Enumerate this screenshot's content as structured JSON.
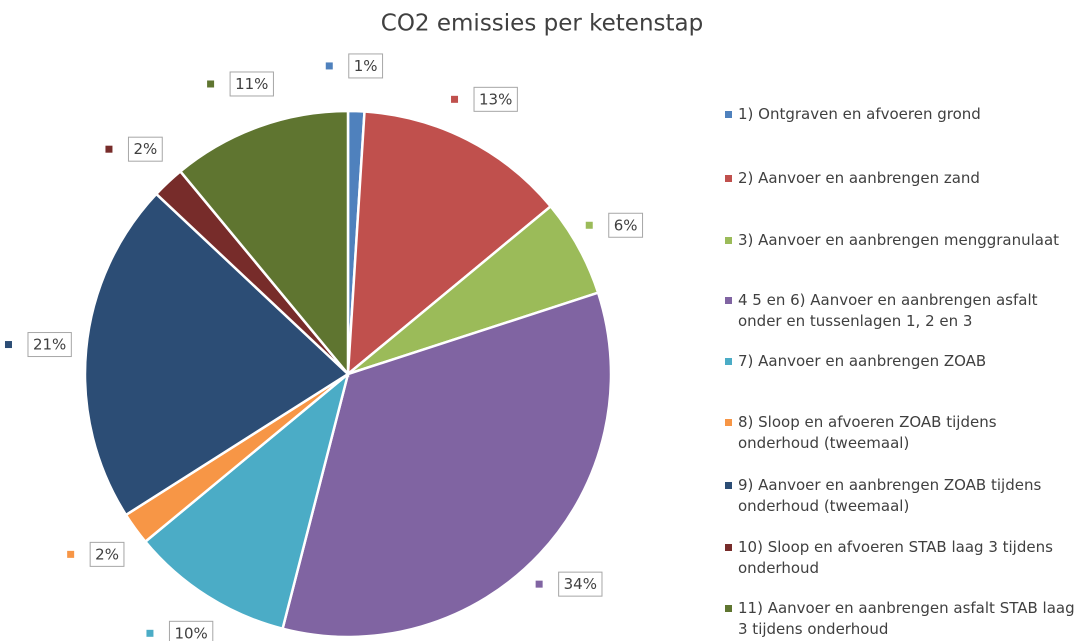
{
  "chart_data": {
    "type": "pie",
    "title": "CO2 emissies per ketenstap",
    "categories": [
      "1) Ontgraven en afvoeren grond",
      "2) Aanvoer en aanbrengen zand",
      "3) Aanvoer en aanbrengen menggranulaat",
      "4 5 en 6) Aanvoer en aanbrengen asfalt onder en tussenlagen 1, 2 en 3",
      "7) Aanvoer en aanbrengen ZOAB",
      "8) Sloop en afvoeren ZOAB tijdens onderhoud (tweemaal)",
      "9) Aanvoer en aanbrengen ZOAB tijdens onderhoud (tweemaal)",
      "10) Sloop en afvoeren STAB laag 3 tijdens onderhoud",
      "11) Aanvoer en aanbrengen asfalt STAB laag 3 tijdens onderhoud"
    ],
    "values": [
      1,
      13,
      6,
      34,
      10,
      2,
      21,
      2,
      11
    ],
    "value_labels": [
      "1%",
      "13%",
      "6%",
      "34%",
      "10%",
      "2%",
      "21%",
      "2%",
      "11%"
    ],
    "colors": [
      "#4f81bd",
      "#c0504d",
      "#9bbb59",
      "#8064a2",
      "#4bacc6",
      "#f79646",
      "#2c4d75",
      "#772c2a",
      "#5f7530"
    ],
    "legend": "right"
  }
}
